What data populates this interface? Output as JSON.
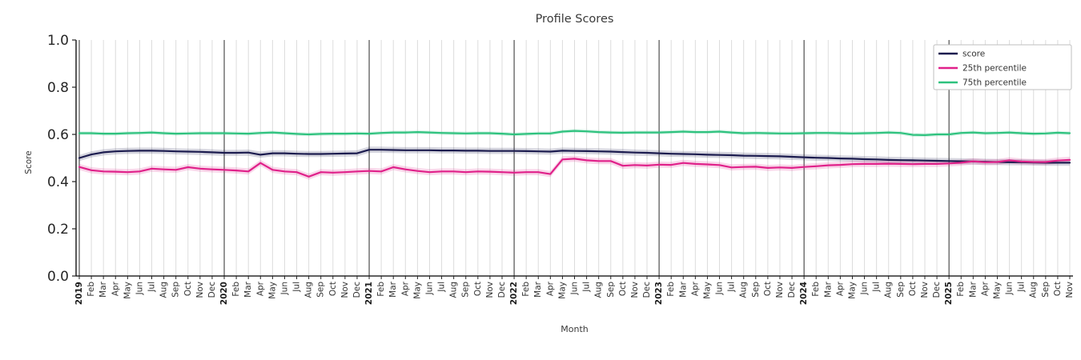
{
  "chart_data": {
    "type": "line",
    "title": "Profile Scores",
    "xlabel": "Month",
    "ylabel": "Score",
    "ylim": [
      0.0,
      1.0
    ],
    "y_ticks": [
      "0.0",
      "0.2",
      "0.4",
      "0.6",
      "0.8",
      "1.0"
    ],
    "grid": "vertical month gridlines, dark separator lines at each year start",
    "legend_position": "upper right",
    "x_tick_labels": [
      "2019",
      "Feb",
      "Mar",
      "Apr",
      "May",
      "Jun",
      "Jul",
      "Aug",
      "Sep",
      "Oct",
      "Nov",
      "Dec",
      "2020",
      "Feb",
      "Mar",
      "Apr",
      "May",
      "Jun",
      "Jul",
      "Aug",
      "Sep",
      "Oct",
      "Nov",
      "Dec",
      "2021",
      "Feb",
      "Mar",
      "Apr",
      "May",
      "Jun",
      "Jul",
      "Aug",
      "Sep",
      "Oct",
      "Nov",
      "Dec",
      "2022",
      "Feb",
      "Mar",
      "Apr",
      "May",
      "Jun",
      "Jul",
      "Aug",
      "Sep",
      "Oct",
      "Nov",
      "Dec",
      "2023",
      "Feb",
      "Mar",
      "Apr",
      "May",
      "Jun",
      "Jul",
      "Aug",
      "Sep",
      "Oct",
      "Nov",
      "Dec",
      "2024",
      "Feb",
      "Mar",
      "Apr",
      "May",
      "Jun",
      "Jul",
      "Aug",
      "Sep",
      "Oct",
      "Nov",
      "Dec",
      "2025",
      "Feb",
      "Mar",
      "Apr",
      "May",
      "Jun",
      "Jul",
      "Aug",
      "Sep",
      "Oct",
      "Nov"
    ],
    "series": [
      {
        "name": "score",
        "color": "#1c1c4f",
        "band_halfwidth": 0.013,
        "values": [
          0.5,
          0.515,
          0.524,
          0.528,
          0.53,
          0.531,
          0.531,
          0.53,
          0.528,
          0.527,
          0.526,
          0.524,
          0.522,
          0.522,
          0.523,
          0.514,
          0.52,
          0.52,
          0.518,
          0.517,
          0.517,
          0.518,
          0.519,
          0.52,
          0.535,
          0.535,
          0.534,
          0.533,
          0.533,
          0.533,
          0.532,
          0.532,
          0.531,
          0.531,
          0.53,
          0.53,
          0.53,
          0.529,
          0.528,
          0.527,
          0.531,
          0.53,
          0.529,
          0.528,
          0.527,
          0.525,
          0.523,
          0.522,
          0.52,
          0.518,
          0.517,
          0.516,
          0.514,
          0.513,
          0.512,
          0.51,
          0.509,
          0.508,
          0.507,
          0.505,
          0.503,
          0.501,
          0.5,
          0.498,
          0.497,
          0.495,
          0.494,
          0.492,
          0.491,
          0.49,
          0.489,
          0.488,
          0.487,
          0.486,
          0.485,
          0.484,
          0.483,
          0.482,
          0.482,
          0.481,
          0.48,
          0.48,
          0.48
        ]
      },
      {
        "name": "25th percentile",
        "color": "#e0218a",
        "band_halfwidth": 0.013,
        "values": [
          0.462,
          0.448,
          0.443,
          0.442,
          0.44,
          0.443,
          0.455,
          0.452,
          0.45,
          0.461,
          0.455,
          0.452,
          0.45,
          0.447,
          0.443,
          0.479,
          0.45,
          0.443,
          0.44,
          0.421,
          0.44,
          0.438,
          0.44,
          0.443,
          0.445,
          0.443,
          0.461,
          0.452,
          0.445,
          0.44,
          0.443,
          0.443,
          0.44,
          0.443,
          0.442,
          0.44,
          0.438,
          0.44,
          0.44,
          0.432,
          0.494,
          0.497,
          0.49,
          0.487,
          0.487,
          0.467,
          0.47,
          0.468,
          0.472,
          0.471,
          0.479,
          0.475,
          0.473,
          0.47,
          0.46,
          0.462,
          0.463,
          0.458,
          0.46,
          0.458,
          0.462,
          0.465,
          0.469,
          0.471,
          0.474,
          0.475,
          0.475,
          0.476,
          0.475,
          0.474,
          0.475,
          0.475,
          0.477,
          0.48,
          0.486,
          0.482,
          0.483,
          0.49,
          0.485,
          0.483,
          0.483,
          0.489,
          0.492
        ]
      },
      {
        "name": "75th percentile",
        "color": "#2ec27e",
        "band_halfwidth": 0.008,
        "values": [
          0.605,
          0.605,
          0.603,
          0.603,
          0.605,
          0.606,
          0.608,
          0.605,
          0.603,
          0.604,
          0.605,
          0.605,
          0.605,
          0.604,
          0.603,
          0.606,
          0.608,
          0.605,
          0.602,
          0.6,
          0.602,
          0.603,
          0.603,
          0.604,
          0.603,
          0.606,
          0.608,
          0.608,
          0.61,
          0.608,
          0.606,
          0.605,
          0.604,
          0.605,
          0.605,
          0.603,
          0.6,
          0.602,
          0.604,
          0.604,
          0.612,
          0.615,
          0.613,
          0.61,
          0.608,
          0.607,
          0.608,
          0.608,
          0.608,
          0.61,
          0.612,
          0.61,
          0.61,
          0.612,
          0.608,
          0.605,
          0.606,
          0.605,
          0.604,
          0.604,
          0.605,
          0.606,
          0.606,
          0.605,
          0.604,
          0.605,
          0.606,
          0.608,
          0.606,
          0.598,
          0.597,
          0.6,
          0.6,
          0.606,
          0.608,
          0.605,
          0.606,
          0.608,
          0.605,
          0.603,
          0.604,
          0.607,
          0.605
        ]
      }
    ],
    "style": {
      "background": "#ffffff",
      "month_gridline_color": "#dcdcdc",
      "year_gridline_color": "#2b2b2b",
      "spine_color": "#000000",
      "tick_label_color": "#262626",
      "band_opacity": 0.18,
      "legend_border_color": "#bfbfbf"
    }
  }
}
